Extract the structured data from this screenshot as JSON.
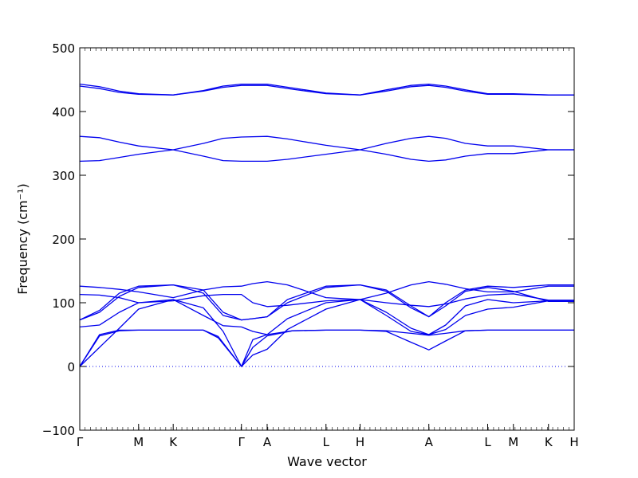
{
  "chart_data": {
    "type": "line",
    "xlabel": "Wave vector",
    "ylabel": "Frequency (cm⁻¹)",
    "ylim": [
      -100,
      500
    ],
    "yticks": [
      -100,
      0,
      100,
      200,
      300,
      400,
      500
    ],
    "xticks": [
      {
        "label": "Γ",
        "x": 0
      },
      {
        "label": "M",
        "x": 0.119
      },
      {
        "label": "K",
        "x": 0.189
      },
      {
        "label": "Γ",
        "x": 0.327
      },
      {
        "label": "A",
        "x": 0.379
      },
      {
        "label": "L",
        "x": 0.498
      },
      {
        "label": "H",
        "x": 0.567
      },
      {
        "label": "A",
        "x": 0.706
      },
      {
        "label": "L",
        "x": 0.825
      },
      {
        "label": "M",
        "x": 0.877
      },
      {
        "label": "K",
        "x": 0.948
      },
      {
        "label": "H",
        "x": 1.0
      }
    ],
    "zero_line": {
      "y": 0,
      "style": "dotted"
    },
    "line_color": "#0000ee",
    "series": [
      {
        "points": [
          [
            0,
            0
          ],
          [
            0.04,
            48
          ],
          [
            0.08,
            56
          ],
          [
            0.119,
            57
          ],
          [
            0.189,
            57
          ],
          [
            0.25,
            57
          ],
          [
            0.28,
            45
          ],
          [
            0.327,
            0
          ],
          [
            0.35,
            30
          ],
          [
            0.379,
            48
          ],
          [
            0.43,
            56
          ],
          [
            0.498,
            57
          ],
          [
            0.567,
            57
          ],
          [
            0.62,
            55
          ],
          [
            0.67,
            38
          ],
          [
            0.706,
            26
          ],
          [
            0.74,
            40
          ],
          [
            0.78,
            56
          ],
          [
            0.825,
            57
          ],
          [
            0.877,
            57
          ],
          [
            0.948,
            57
          ],
          [
            1.0,
            57
          ]
        ]
      },
      {
        "points": [
          [
            0,
            0
          ],
          [
            0.04,
            50
          ],
          [
            0.08,
            57
          ],
          [
            0.119,
            57
          ],
          [
            0.189,
            57
          ],
          [
            0.25,
            57
          ],
          [
            0.28,
            47
          ],
          [
            0.327,
            0
          ],
          [
            0.35,
            42
          ],
          [
            0.379,
            50
          ],
          [
            0.43,
            56
          ],
          [
            0.498,
            57
          ],
          [
            0.567,
            57
          ],
          [
            0.62,
            56
          ],
          [
            0.67,
            52
          ],
          [
            0.706,
            49
          ],
          [
            0.74,
            52
          ],
          [
            0.78,
            56
          ],
          [
            0.825,
            57
          ],
          [
            0.877,
            57
          ],
          [
            0.948,
            57
          ],
          [
            1.0,
            57
          ]
        ]
      },
      {
        "points": [
          [
            0,
            0
          ],
          [
            0.04,
            30
          ],
          [
            0.08,
            60
          ],
          [
            0.119,
            90
          ],
          [
            0.189,
            105
          ],
          [
            0.25,
            92
          ],
          [
            0.29,
            55
          ],
          [
            0.327,
            0
          ],
          [
            0.35,
            18
          ],
          [
            0.379,
            27
          ],
          [
            0.42,
            58
          ],
          [
            0.498,
            90
          ],
          [
            0.567,
            105
          ],
          [
            0.62,
            85
          ],
          [
            0.67,
            60
          ],
          [
            0.706,
            50
          ],
          [
            0.74,
            58
          ],
          [
            0.78,
            80
          ],
          [
            0.825,
            90
          ],
          [
            0.877,
            93
          ],
          [
            0.948,
            103
          ],
          [
            1.0,
            103
          ]
        ]
      },
      {
        "points": [
          [
            0,
            62
          ],
          [
            0.04,
            65
          ],
          [
            0.08,
            85
          ],
          [
            0.119,
            100
          ],
          [
            0.189,
            105
          ],
          [
            0.25,
            80
          ],
          [
            0.29,
            64
          ],
          [
            0.327,
            62
          ],
          [
            0.35,
            55
          ],
          [
            0.379,
            50
          ],
          [
            0.42,
            75
          ],
          [
            0.498,
            100
          ],
          [
            0.567,
            105
          ],
          [
            0.62,
            80
          ],
          [
            0.67,
            55
          ],
          [
            0.706,
            50
          ],
          [
            0.74,
            65
          ],
          [
            0.78,
            95
          ],
          [
            0.825,
            105
          ],
          [
            0.877,
            100
          ],
          [
            0.948,
            103
          ],
          [
            1.0,
            103
          ]
        ]
      },
      {
        "points": [
          [
            0,
            73
          ],
          [
            0.04,
            85
          ],
          [
            0.08,
            110
          ],
          [
            0.119,
            124
          ],
          [
            0.189,
            128
          ],
          [
            0.25,
            115
          ],
          [
            0.29,
            80
          ],
          [
            0.327,
            73
          ],
          [
            0.35,
            75
          ],
          [
            0.379,
            78
          ],
          [
            0.42,
            100
          ],
          [
            0.498,
            124
          ],
          [
            0.567,
            128
          ],
          [
            0.62,
            118
          ],
          [
            0.67,
            92
          ],
          [
            0.706,
            78
          ],
          [
            0.74,
            95
          ],
          [
            0.78,
            118
          ],
          [
            0.825,
            124
          ],
          [
            0.877,
            118
          ],
          [
            0.948,
            102
          ],
          [
            1.0,
            102
          ]
        ]
      },
      {
        "points": [
          [
            0,
            73
          ],
          [
            0.04,
            88
          ],
          [
            0.08,
            115
          ],
          [
            0.119,
            126
          ],
          [
            0.189,
            128
          ],
          [
            0.25,
            120
          ],
          [
            0.29,
            85
          ],
          [
            0.327,
            73
          ],
          [
            0.35,
            75
          ],
          [
            0.379,
            78
          ],
          [
            0.42,
            105
          ],
          [
            0.498,
            126
          ],
          [
            0.567,
            128
          ],
          [
            0.62,
            120
          ],
          [
            0.67,
            95
          ],
          [
            0.706,
            78
          ],
          [
            0.74,
            100
          ],
          [
            0.78,
            120
          ],
          [
            0.825,
            126
          ],
          [
            0.877,
            124
          ],
          [
            0.948,
            128
          ],
          [
            1.0,
            128
          ]
        ]
      },
      {
        "points": [
          [
            0,
            113
          ],
          [
            0.04,
            112
          ],
          [
            0.08,
            108
          ],
          [
            0.119,
            100
          ],
          [
            0.189,
            103
          ],
          [
            0.25,
            111
          ],
          [
            0.29,
            113
          ],
          [
            0.327,
            113
          ],
          [
            0.35,
            100
          ],
          [
            0.379,
            94
          ],
          [
            0.42,
            96
          ],
          [
            0.498,
            103
          ],
          [
            0.567,
            105
          ],
          [
            0.62,
            100
          ],
          [
            0.67,
            96
          ],
          [
            0.706,
            94
          ],
          [
            0.74,
            98
          ],
          [
            0.78,
            106
          ],
          [
            0.825,
            112
          ],
          [
            0.877,
            114
          ],
          [
            0.948,
            104
          ],
          [
            1.0,
            104
          ]
        ]
      },
      {
        "points": [
          [
            0,
            126
          ],
          [
            0.04,
            124
          ],
          [
            0.08,
            121
          ],
          [
            0.119,
            117
          ],
          [
            0.189,
            108
          ],
          [
            0.25,
            120
          ],
          [
            0.29,
            125
          ],
          [
            0.327,
            126
          ],
          [
            0.35,
            130
          ],
          [
            0.379,
            133
          ],
          [
            0.42,
            128
          ],
          [
            0.498,
            108
          ],
          [
            0.567,
            105
          ],
          [
            0.62,
            115
          ],
          [
            0.67,
            128
          ],
          [
            0.706,
            133
          ],
          [
            0.74,
            129
          ],
          [
            0.78,
            122
          ],
          [
            0.825,
            117
          ],
          [
            0.877,
            117
          ],
          [
            0.948,
            126
          ],
          [
            1.0,
            126
          ]
        ]
      },
      {
        "points": [
          [
            0,
            322
          ],
          [
            0.04,
            323
          ],
          [
            0.08,
            328
          ],
          [
            0.119,
            333
          ],
          [
            0.189,
            340
          ],
          [
            0.25,
            350
          ],
          [
            0.29,
            358
          ],
          [
            0.327,
            360
          ],
          [
            0.379,
            361
          ],
          [
            0.42,
            357
          ],
          [
            0.498,
            347
          ],
          [
            0.567,
            340
          ],
          [
            0.62,
            333
          ],
          [
            0.67,
            325
          ],
          [
            0.706,
            322
          ],
          [
            0.74,
            324
          ],
          [
            0.78,
            330
          ],
          [
            0.825,
            334
          ],
          [
            0.877,
            334
          ],
          [
            0.948,
            340
          ],
          [
            1.0,
            340
          ]
        ]
      },
      {
        "points": [
          [
            0,
            361
          ],
          [
            0.04,
            359
          ],
          [
            0.08,
            352
          ],
          [
            0.119,
            346
          ],
          [
            0.189,
            340
          ],
          [
            0.25,
            330
          ],
          [
            0.29,
            323
          ],
          [
            0.327,
            322
          ],
          [
            0.379,
            322
          ],
          [
            0.42,
            325
          ],
          [
            0.498,
            333
          ],
          [
            0.567,
            340
          ],
          [
            0.62,
            350
          ],
          [
            0.67,
            358
          ],
          [
            0.706,
            361
          ],
          [
            0.74,
            358
          ],
          [
            0.78,
            350
          ],
          [
            0.825,
            346
          ],
          [
            0.877,
            346
          ],
          [
            0.948,
            340
          ],
          [
            1.0,
            340
          ]
        ]
      },
      {
        "points": [
          [
            0,
            440
          ],
          [
            0.04,
            436
          ],
          [
            0.08,
            430
          ],
          [
            0.119,
            427
          ],
          [
            0.189,
            426
          ],
          [
            0.25,
            432
          ],
          [
            0.29,
            438
          ],
          [
            0.327,
            441
          ],
          [
            0.379,
            441
          ],
          [
            0.43,
            435
          ],
          [
            0.498,
            428
          ],
          [
            0.567,
            426
          ],
          [
            0.62,
            432
          ],
          [
            0.67,
            439
          ],
          [
            0.706,
            441
          ],
          [
            0.74,
            438
          ],
          [
            0.78,
            432
          ],
          [
            0.825,
            427
          ],
          [
            0.877,
            427
          ],
          [
            0.948,
            426
          ],
          [
            1.0,
            426
          ]
        ]
      },
      {
        "points": [
          [
            0,
            443
          ],
          [
            0.04,
            439
          ],
          [
            0.08,
            432
          ],
          [
            0.119,
            428
          ],
          [
            0.189,
            426
          ],
          [
            0.25,
            433
          ],
          [
            0.29,
            440
          ],
          [
            0.327,
            443
          ],
          [
            0.379,
            443
          ],
          [
            0.43,
            437
          ],
          [
            0.498,
            429
          ],
          [
            0.567,
            426
          ],
          [
            0.62,
            434
          ],
          [
            0.67,
            441
          ],
          [
            0.706,
            443
          ],
          [
            0.74,
            440
          ],
          [
            0.78,
            434
          ],
          [
            0.825,
            428
          ],
          [
            0.877,
            428
          ],
          [
            0.948,
            426
          ],
          [
            1.0,
            426
          ]
        ]
      }
    ]
  }
}
